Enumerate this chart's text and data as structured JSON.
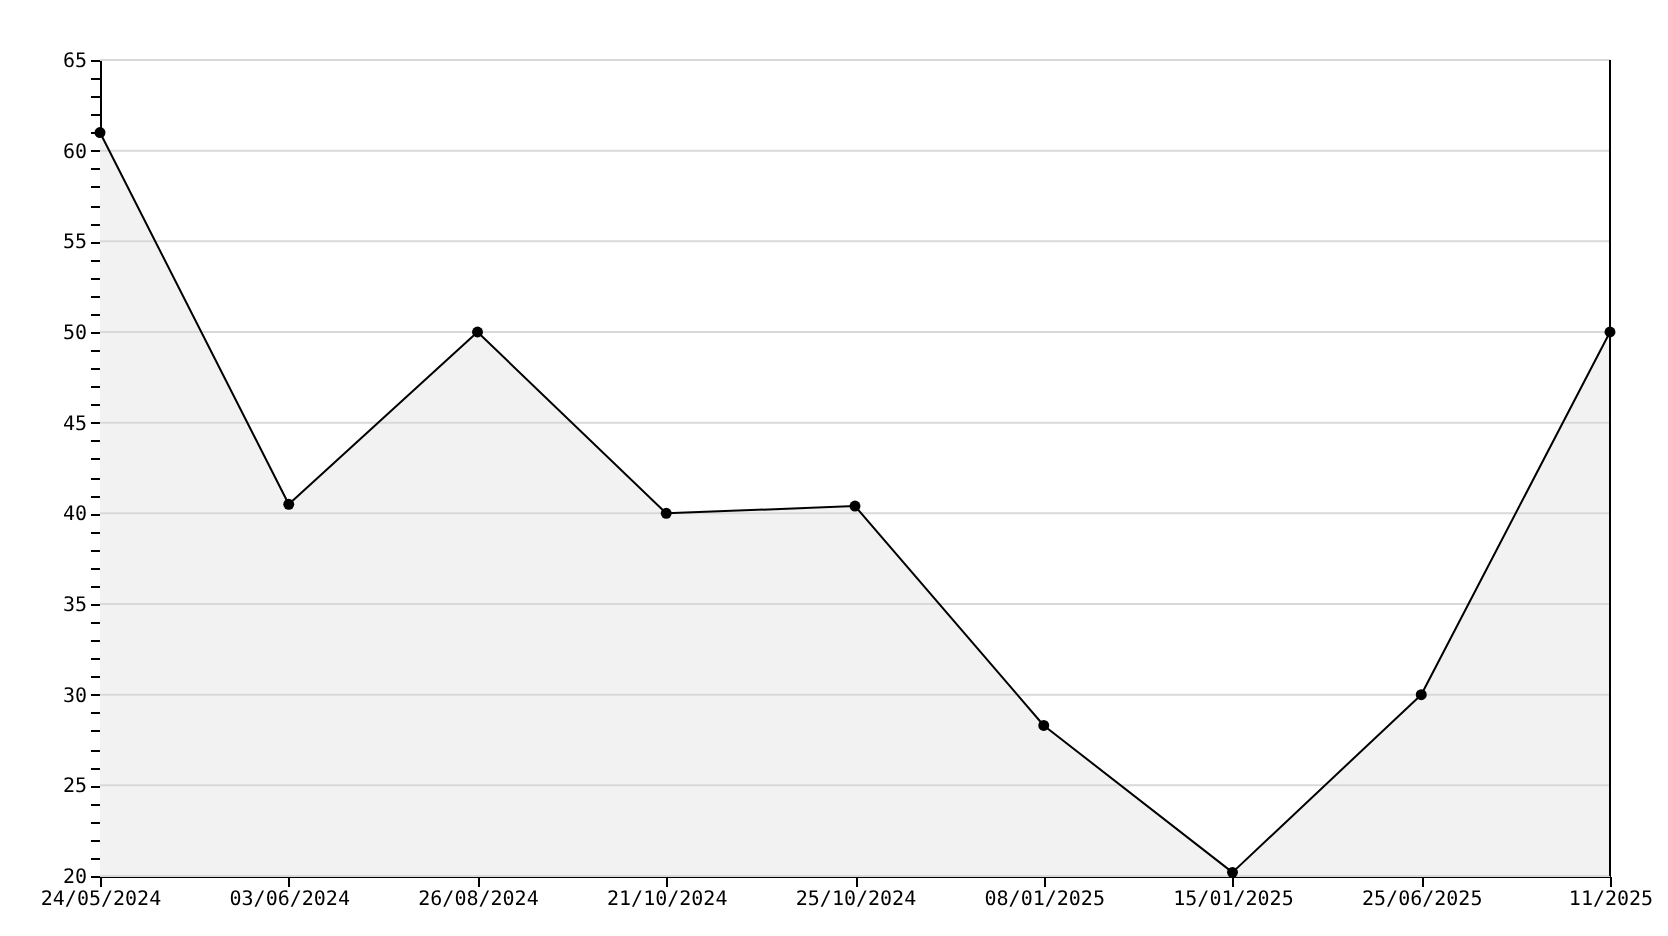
{
  "chart_data": {
    "type": "area",
    "categories": [
      "24/05/2024",
      "03/06/2024",
      "26/08/2024",
      "21/10/2024",
      "25/10/2024",
      "08/01/2025",
      "15/01/2025",
      "25/06/2025",
      "11/2025"
    ],
    "series": [
      {
        "color": "#000000",
        "values": [
          61,
          40.5,
          50,
          40,
          40.4,
          28.3,
          20.2,
          30,
          50
        ]
      }
    ],
    "ylim": [
      20,
      65
    ],
    "yticks": [
      20,
      {
        "value": 21,
        "label": null
      },
      {
        "value": 22,
        "label": null
      },
      {
        "value": 23,
        "label": null
      },
      {
        "value": 24,
        "label": null
      },
      25,
      {
        "value": 26,
        "label": null
      },
      {
        "value": 27,
        "label": null
      },
      {
        "value": 28,
        "label": null
      },
      {
        "value": 29,
        "label": null
      },
      30,
      {
        "value": 31,
        "label": null
      },
      {
        "value": 32,
        "label": null
      },
      {
        "value": 33,
        "label": null
      },
      {
        "value": 34,
        "label": null
      },
      35,
      {
        "value": 36,
        "label": null
      },
      {
        "value": 37,
        "label": null
      },
      {
        "value": 38,
        "label": null
      },
      {
        "value": 39,
        "label": null
      },
      40,
      {
        "value": 41,
        "label": null
      },
      {
        "value": 42,
        "label": null
      },
      {
        "value": 43,
        "label": null
      },
      {
        "value": 44,
        "label": null
      },
      45,
      {
        "value": 46,
        "label": null
      },
      {
        "value": 47,
        "label": null
      },
      {
        "value": 48,
        "label": null
      },
      {
        "value": 49,
        "label": null
      },
      50,
      {
        "value": 51,
        "label": null
      },
      {
        "value": 52,
        "label": null
      },
      {
        "value": 53,
        "label": null
      },
      {
        "value": 54,
        "label": null
      },
      55,
      {
        "value": 56,
        "label": null
      },
      {
        "value": 57,
        "label": null
      },
      {
        "value": 58,
        "label": null
      },
      {
        "value": 59,
        "label": null
      },
      60,
      {
        "value": 61,
        "label": null
      },
      {
        "value": 62,
        "label": null
      },
      {
        "value": 63,
        "label": null
      },
      {
        "value": 64,
        "label": null
      },
      65
    ],
    "grid": "y",
    "marker": "circle",
    "line_style": "solid"
  }
}
